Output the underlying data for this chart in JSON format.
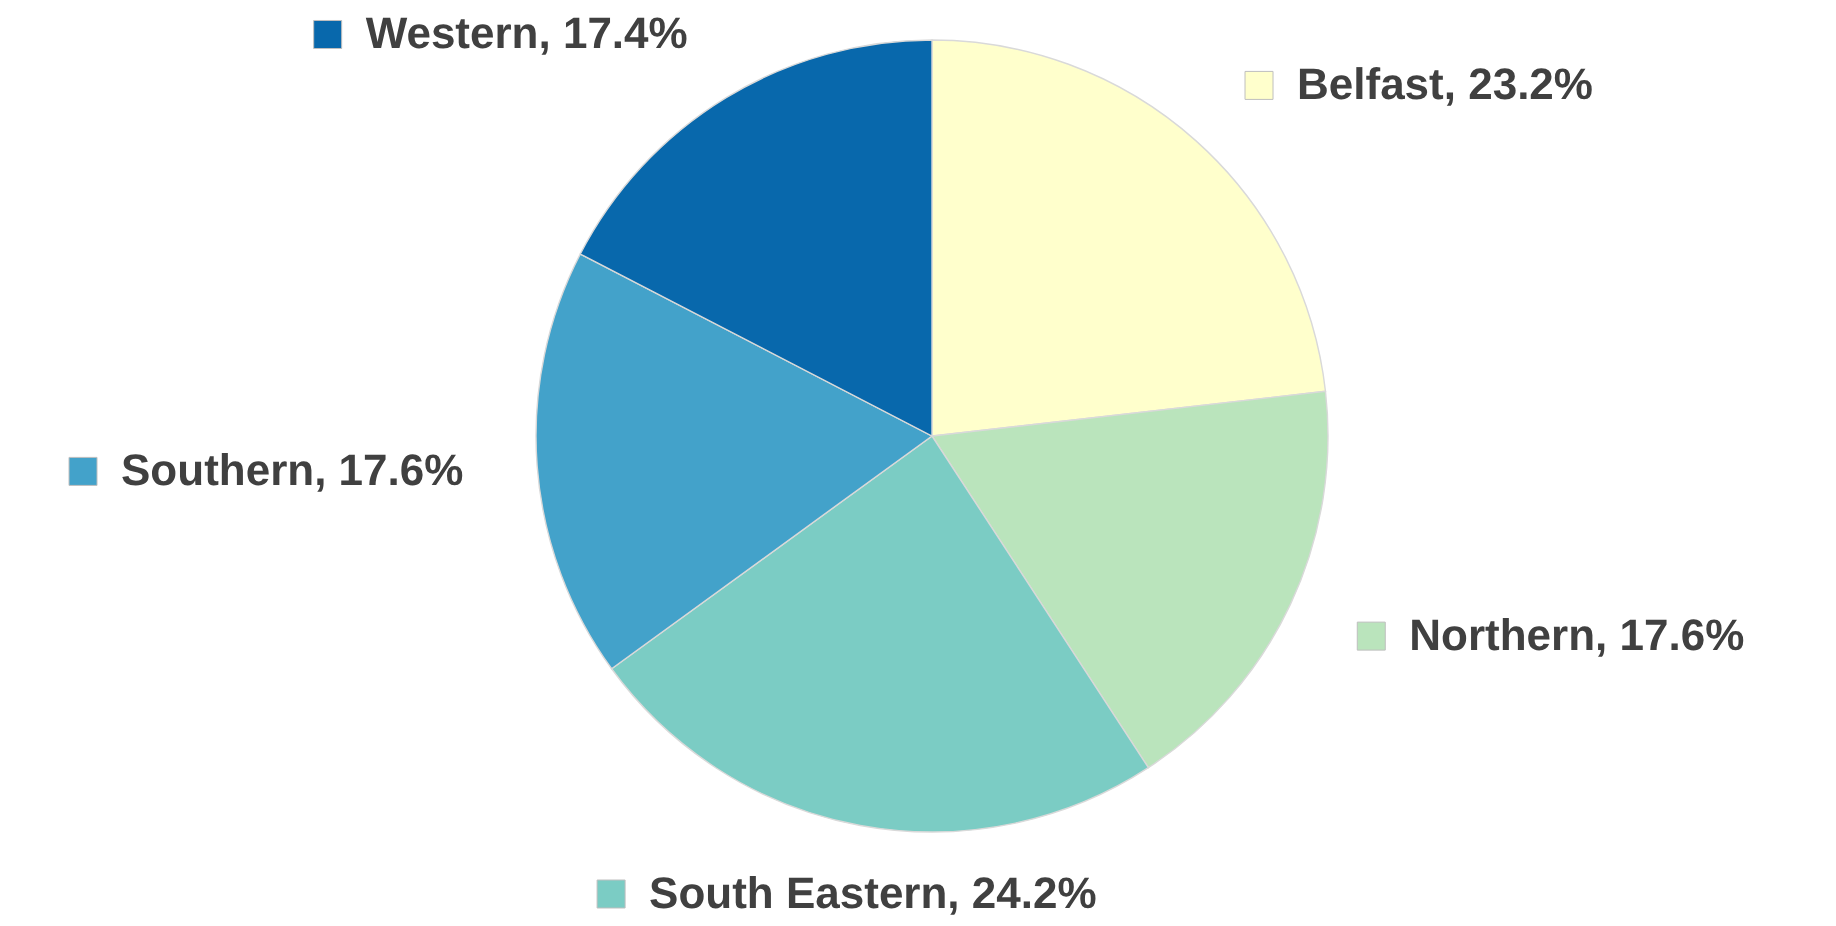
{
  "chart_data": {
    "type": "pie",
    "categories": [
      "Belfast",
      "Northern",
      "South Eastern",
      "Southern",
      "Western"
    ],
    "values": [
      23.2,
      17.6,
      24.2,
      17.6,
      17.4
    ],
    "colors": [
      "#ffffcc",
      "#bae4bc",
      "#7bccc4",
      "#43a2ca",
      "#0868ac"
    ],
    "legend": "right",
    "value_labels": [
      "23.2%",
      "17.6%",
      "24.2%",
      "17.6%",
      "17.4%"
    ]
  }
}
